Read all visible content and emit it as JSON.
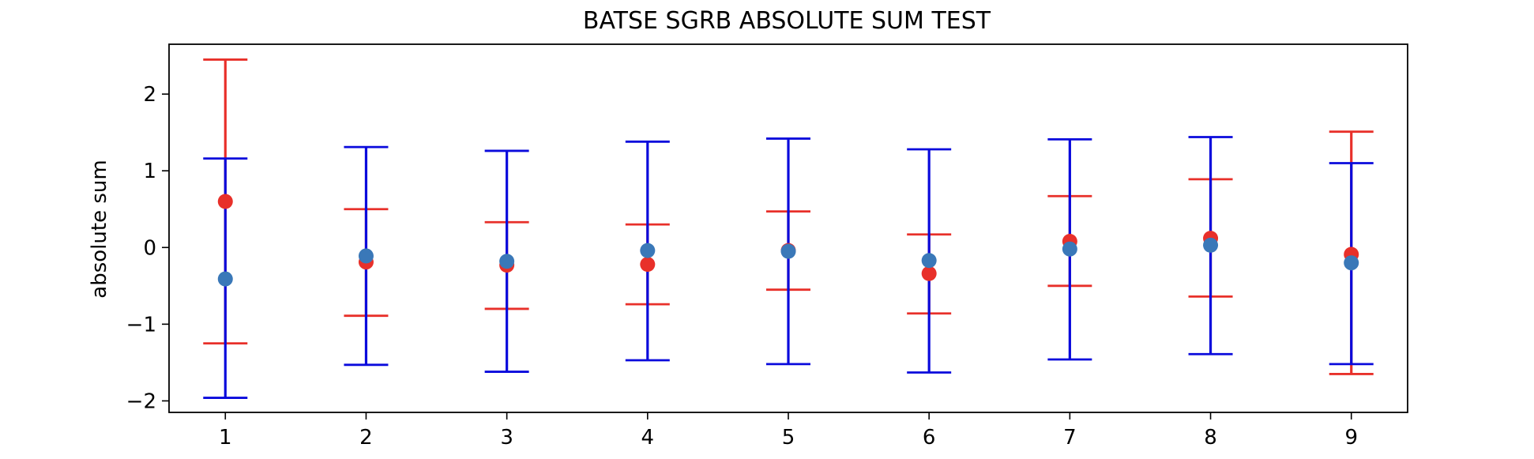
{
  "chart_data": {
    "type": "errorbar",
    "title": "BATSE SGRB ABSOLUTE SUM TEST",
    "xlabel": "",
    "ylabel": "absolute sum",
    "x": [
      1,
      2,
      3,
      4,
      5,
      6,
      7,
      8,
      9
    ],
    "xlim": [
      0.6,
      9.4
    ],
    "ylim": [
      -2.15,
      2.65
    ],
    "yticks": [
      -2,
      -1,
      0,
      1,
      2
    ],
    "ytick_labels": [
      "−2",
      "−1",
      "0",
      "1",
      "2"
    ],
    "xtick_labels": [
      "1",
      "2",
      "3",
      "4",
      "5",
      "6",
      "7",
      "8",
      "9"
    ],
    "grid": false,
    "series": [
      {
        "name": "red",
        "color": "#e8302a",
        "err_color": "#e8302a",
        "values": [
          0.6,
          -0.19,
          -0.23,
          -0.22,
          -0.04,
          -0.34,
          0.08,
          0.12,
          -0.09
        ],
        "err_low": [
          -1.25,
          -0.89,
          -0.8,
          -0.74,
          -0.55,
          -0.86,
          -0.5,
          -0.64,
          -1.65
        ],
        "err_high": [
          2.45,
          0.5,
          0.33,
          0.3,
          0.47,
          0.17,
          0.67,
          0.89,
          1.51
        ]
      },
      {
        "name": "blue",
        "color": "#3a78b8",
        "err_color": "#0a0adc",
        "values": [
          -0.41,
          -0.11,
          -0.18,
          -0.04,
          -0.05,
          -0.17,
          -0.02,
          0.03,
          -0.2
        ],
        "err_low": [
          -1.96,
          -1.53,
          -1.62,
          -1.47,
          -1.52,
          -1.63,
          -1.46,
          -1.39,
          -1.52
        ],
        "err_high": [
          1.16,
          1.31,
          1.26,
          1.38,
          1.42,
          1.28,
          1.41,
          1.44,
          1.1
        ]
      }
    ]
  }
}
